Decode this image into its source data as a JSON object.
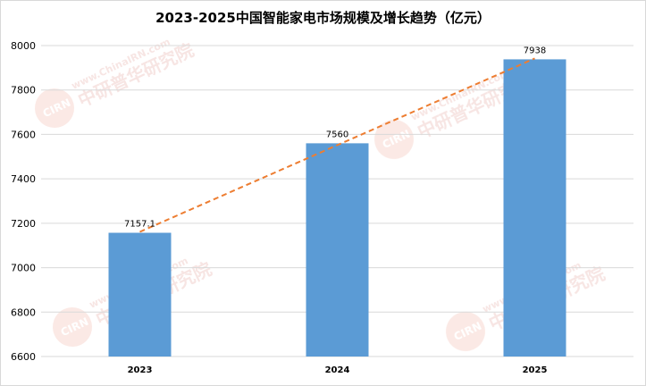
{
  "chart_data": {
    "type": "bar",
    "title": "2023-2025中国智能家电市场规模及增长趋势（亿元）",
    "categories": [
      "2023",
      "2024",
      "2025"
    ],
    "series": [
      {
        "values": [
          7157.1,
          7560,
          7938
        ]
      }
    ],
    "data_labels": [
      "7157.1",
      "7560",
      "7938"
    ],
    "ylim": [
      6600,
      8000
    ],
    "y_ticks": [
      6600,
      6800,
      7000,
      7200,
      7400,
      7600,
      7800,
      8000
    ],
    "grid": true,
    "trendline": {
      "type": "linear",
      "style": "dashed"
    },
    "legend": "none",
    "colors": {
      "bar": "#5b9bd5",
      "trendline": "#ed7d31",
      "grid": "#d9d9d9"
    }
  },
  "watermark": {
    "text": "www.ChinaIRN.com",
    "brand": "中研普华研究院",
    "logo": "CIRN"
  }
}
